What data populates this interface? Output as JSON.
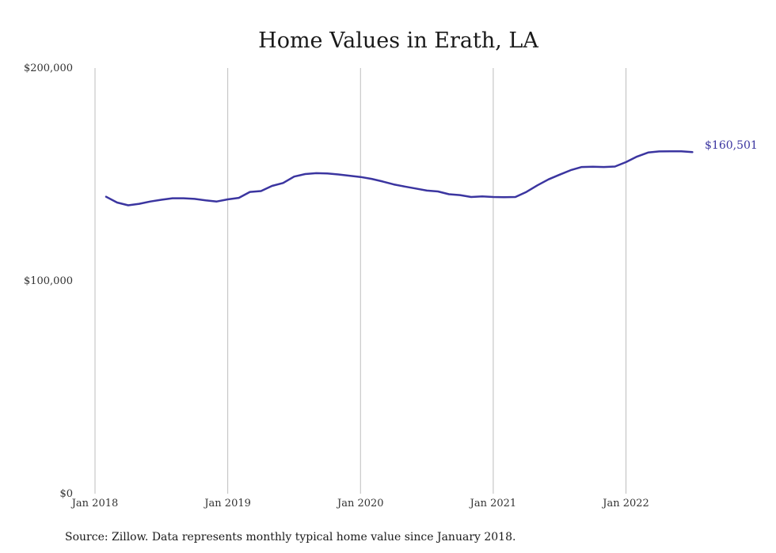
{
  "chart_data": {
    "type": "line",
    "title": "Home Values in Erath, LA",
    "xlabel": "",
    "ylabel": "",
    "x_ticks": [
      "Jan 2018",
      "Jan 2019",
      "Jan 2020",
      "Jan 2021",
      "Jan 2022"
    ],
    "y_ticks": [
      "$0",
      "$100,000",
      "$200,000"
    ],
    "ylim": [
      0,
      200000
    ],
    "xlim": [
      "2018-01",
      "2022-10"
    ],
    "grid": "vertical",
    "line_color": "#3b35a0",
    "series": [
      {
        "x": [
          "2018-02",
          "2018-03",
          "2018-04",
          "2018-05",
          "2018-06",
          "2018-07",
          "2018-08",
          "2018-09",
          "2018-10",
          "2018-11",
          "2018-12",
          "2019-01",
          "2019-02",
          "2019-03",
          "2019-04",
          "2019-05",
          "2019-06",
          "2019-07",
          "2019-08",
          "2019-09",
          "2019-10",
          "2019-11",
          "2019-12",
          "2020-01",
          "2020-02",
          "2020-03",
          "2020-04",
          "2020-05",
          "2020-06",
          "2020-07",
          "2020-08",
          "2020-09",
          "2020-10",
          "2020-11",
          "2020-12",
          "2021-01",
          "2021-02",
          "2021-03",
          "2021-04",
          "2021-05",
          "2021-06",
          "2021-07",
          "2021-08",
          "2021-09",
          "2021-10",
          "2021-11",
          "2021-12",
          "2022-01",
          "2022-02",
          "2022-03",
          "2022-04",
          "2022-05",
          "2022-06",
          "2022-07"
        ],
        "values": [
          139500,
          136800,
          135500,
          136200,
          137300,
          138100,
          138800,
          138800,
          138500,
          137800,
          137300,
          138300,
          139000,
          141800,
          142200,
          144600,
          146000,
          149000,
          150200,
          150600,
          150500,
          150000,
          149400,
          148800,
          147900,
          146700,
          145300,
          144300,
          143400,
          142400,
          142000,
          140700,
          140300,
          139400,
          139700,
          139400,
          139300,
          139400,
          141800,
          144900,
          147700,
          149900,
          152000,
          153500,
          153600,
          153500,
          153700,
          155800,
          158400,
          160300,
          160800,
          160900,
          160900,
          160501
        ]
      }
    ],
    "end_label": "$160,501",
    "source_note": "Source: Zillow. Data represents monthly typical home value since January 2018."
  }
}
